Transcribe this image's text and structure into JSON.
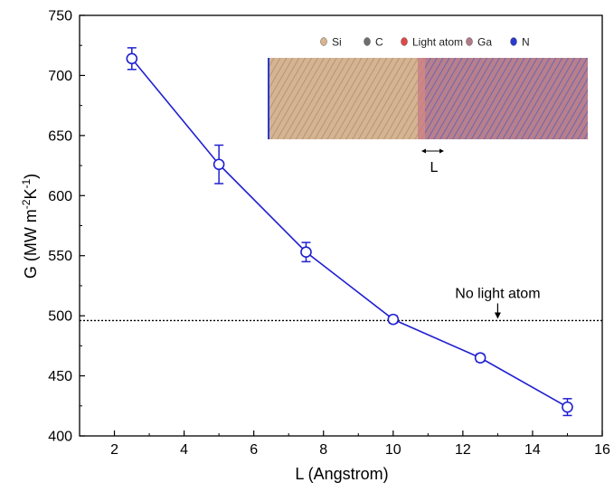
{
  "chart_data": {
    "type": "line",
    "xlabel": "L (Angstrom)",
    "ylabel": "G (MW m-2K-1)",
    "ylabel_parts": {
      "base": "G (MW m",
      "sup1": "-2",
      "mid": "K",
      "sup2": "-1",
      "end": ")"
    },
    "xlim": [
      1,
      16
    ],
    "ylim": [
      400,
      750
    ],
    "xticks": [
      2,
      4,
      6,
      8,
      10,
      12,
      14,
      16
    ],
    "yticks": [
      400,
      450,
      500,
      550,
      600,
      650,
      700,
      750
    ],
    "grid": false,
    "series": [
      {
        "x": [
          2.5,
          5,
          7.5,
          10,
          12.5,
          15
        ],
        "y": [
          714,
          626,
          553,
          497,
          465,
          424
        ],
        "error": [
          9,
          16,
          8,
          3,
          3,
          7
        ],
        "color": "#2020d0",
        "marker": "open-circle"
      }
    ],
    "reference_line": {
      "y": 496,
      "style": "dotted",
      "label": "No light atom",
      "arrow_x": 13
    },
    "inset": {
      "legend": [
        {
          "label": "Si",
          "color": "#d9b48f"
        },
        {
          "label": "C",
          "color": "#6e6e6e"
        },
        {
          "label": "Light atom",
          "color": "#e04848"
        },
        {
          "label": "Ga",
          "color": "#b07a86"
        },
        {
          "label": "N",
          "color": "#2a3bd0"
        }
      ],
      "length_label": "L"
    }
  }
}
